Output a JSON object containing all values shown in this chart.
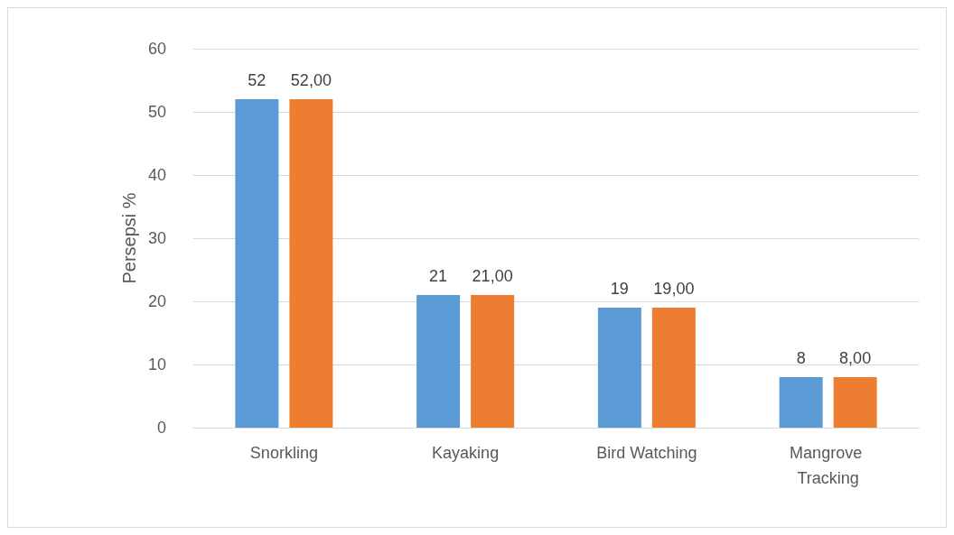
{
  "chart_data": {
    "type": "bar",
    "ylabel": "Persepsi %",
    "categories": [
      "Snorkling",
      "Kayaking",
      "Bird Watching",
      "Mangrove Tracking"
    ],
    "series": [
      {
        "color": "#5b9bd5",
        "values": [
          52,
          21,
          19,
          8
        ],
        "value_labels": [
          "52",
          "21",
          "19",
          "8"
        ]
      },
      {
        "color": "#ed7d31",
        "values": [
          52,
          21,
          19,
          8
        ],
        "value_labels": [
          "52,00",
          "21,00",
          "19,00",
          "8,00"
        ]
      }
    ],
    "ylim": [
      0,
      60
    ],
    "yticks": [
      0,
      10,
      20,
      30,
      40,
      50,
      60
    ],
    "grid": "y"
  }
}
